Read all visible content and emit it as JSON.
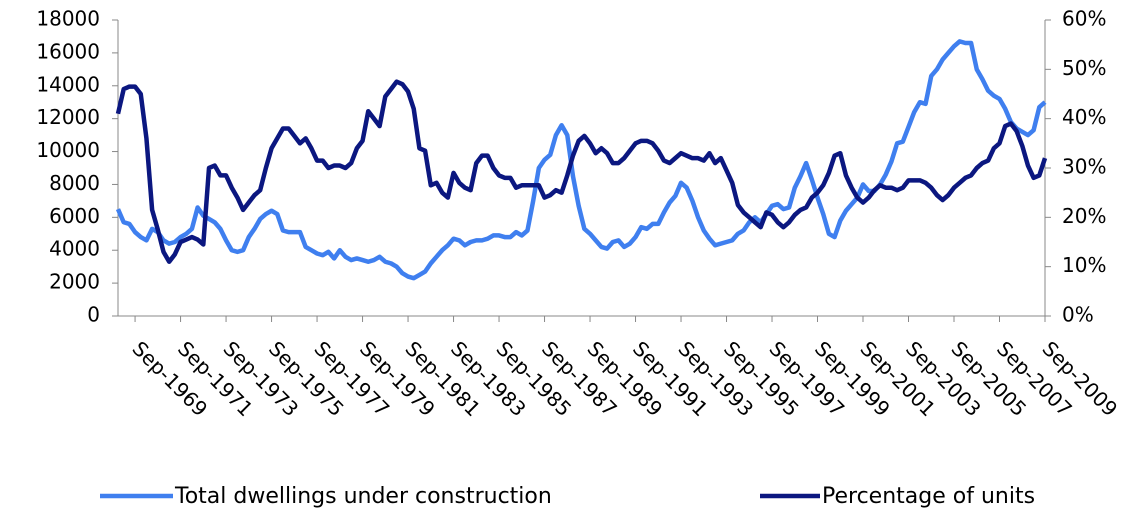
{
  "chart_data": {
    "type": "line",
    "categories": [
      null,
      null,
      null,
      "Sep-1969",
      null,
      null,
      null,
      null,
      null,
      null,
      null,
      "Sep-1971",
      null,
      null,
      null,
      null,
      null,
      null,
      null,
      "Sep-1973",
      null,
      null,
      null,
      null,
      null,
      null,
      null,
      "Sep-1975",
      null,
      null,
      null,
      null,
      null,
      null,
      null,
      "Sep-1977",
      null,
      null,
      null,
      null,
      null,
      null,
      null,
      "Sep-1979",
      null,
      null,
      null,
      null,
      null,
      null,
      null,
      "Sep-1981",
      null,
      null,
      null,
      null,
      null,
      null,
      null,
      "Sep-1983",
      null,
      null,
      null,
      null,
      null,
      null,
      null,
      "Sep-1985",
      null,
      null,
      null,
      null,
      null,
      null,
      null,
      "Sep-1987",
      null,
      null,
      null,
      null,
      null,
      null,
      null,
      "Sep-1989",
      null,
      null,
      null,
      null,
      null,
      null,
      null,
      "Sep-1991",
      null,
      null,
      null,
      null,
      null,
      null,
      null,
      "Sep-1993",
      null,
      null,
      null,
      null,
      null,
      null,
      null,
      "Sep-1995",
      null,
      null,
      null,
      null,
      null,
      null,
      null,
      "Sep-1997",
      null,
      null,
      null,
      null,
      null,
      null,
      null,
      "Sep-1999",
      null,
      null,
      null,
      null,
      null,
      null,
      null,
      "Sep-2001",
      null,
      null,
      null,
      null,
      null,
      null,
      null,
      "Sep-2003",
      null,
      null,
      null,
      null,
      null,
      null,
      null,
      "Sep-2005",
      null,
      null,
      null,
      null,
      null,
      null,
      null,
      "Sep-2007",
      null,
      null,
      null,
      null,
      null,
      null,
      null,
      "Sep-2009"
    ],
    "series": [
      {
        "name": "Total dwellings under construction",
        "color": "#3f7fef",
        "axis": "y",
        "values": [
          6500,
          5700,
          5600,
          5100,
          4800,
          4600,
          5300,
          5100,
          4600,
          4400,
          4500,
          4800,
          5000,
          5300,
          6600,
          6100,
          5900,
          5700,
          5300,
          4600,
          4000,
          3900,
          4000,
          4800,
          5300,
          5900,
          6200,
          6400,
          6200,
          5200,
          5100,
          5100,
          5100,
          4200,
          4000,
          3800,
          3700,
          3900,
          3500,
          4000,
          3600,
          3400,
          3500,
          3400,
          3300,
          3400,
          3600,
          3300,
          3200,
          3000,
          2600,
          2400,
          2300,
          2500,
          2700,
          3200,
          3600,
          4000,
          4300,
          4700,
          4600,
          4300,
          4500,
          4600,
          4600,
          4700,
          4900,
          4900,
          4800,
          4800,
          5100,
          4900,
          5200,
          7000,
          9000,
          9500,
          9800,
          11000,
          11600,
          11000,
          8500,
          6700,
          5300,
          5000,
          4600,
          4200,
          4100,
          4500,
          4600,
          4200,
          4400,
          4800,
          5400,
          5300,
          5600,
          5600,
          6300,
          6900,
          7300,
          8100,
          7800,
          7000,
          6000,
          5200,
          4700,
          4300,
          4400,
          4500,
          4600,
          5000,
          5200,
          5700,
          6000,
          5700,
          6200,
          6700,
          6800,
          6500,
          6600,
          7800,
          8500,
          9300,
          8300,
          7200,
          6200,
          5000,
          4800,
          5800,
          6400,
          6800,
          7200,
          8000,
          7600,
          7600,
          8000,
          8600,
          9400,
          10500,
          10600,
          11500,
          12400,
          13000,
          12900,
          14600,
          15000,
          15600,
          16000,
          16400,
          16700,
          16600,
          16600,
          15000,
          14400,
          13700,
          13400,
          13200,
          12600,
          11800,
          11400,
          11200,
          11000,
          11300,
          12700,
          13000
        ]
      },
      {
        "name": "Percentage of units",
        "color": "#0b1780",
        "axis": "y2",
        "values": [
          41,
          46,
          46.5,
          46.5,
          45,
          36,
          21.5,
          17.5,
          13,
          11,
          12.5,
          15,
          15.5,
          16,
          15.5,
          14.5,
          30,
          30.5,
          28.5,
          28.5,
          26,
          24,
          21.5,
          23,
          24.5,
          25.5,
          30,
          34,
          36,
          38,
          38,
          36.5,
          35,
          36,
          34,
          31.5,
          31.5,
          30,
          30.5,
          30.5,
          30,
          31,
          34,
          35.5,
          41.5,
          40,
          38.5,
          44.5,
          46,
          47.5,
          47,
          45.5,
          42,
          34,
          33.5,
          26.5,
          27,
          25,
          24,
          29,
          27,
          26,
          25.5,
          31,
          32.5,
          32.5,
          30,
          28.5,
          28,
          28,
          26,
          26.5,
          26.5,
          26.5,
          26.5,
          24,
          24.5,
          25.5,
          25,
          28.5,
          32.5,
          35.5,
          36.5,
          35,
          33,
          34,
          33,
          31,
          31,
          32,
          33.5,
          35,
          35.5,
          35.5,
          35,
          33.5,
          31.5,
          31,
          32,
          33,
          32.5,
          32,
          32,
          31.5,
          33,
          31,
          32,
          29.5,
          27,
          22.5,
          21,
          20,
          19,
          18,
          21,
          20.5,
          19,
          18,
          19,
          20.5,
          21.5,
          22,
          24,
          25,
          26.5,
          29,
          32.5,
          33,
          28.5,
          26,
          24,
          23,
          24,
          25.5,
          26.5,
          26,
          26,
          25.5,
          26,
          27.5,
          27.5,
          27.5,
          27,
          26,
          24.5,
          23.5,
          24.5,
          26,
          27,
          28,
          28.5,
          30,
          31,
          31.5,
          34,
          35,
          38.5,
          39,
          37.5,
          34.5,
          30.5,
          28,
          28.5,
          32
        ]
      }
    ],
    "ylim": [
      0,
      18000
    ],
    "yticks": [
      0,
      2000,
      4000,
      6000,
      8000,
      10000,
      12000,
      14000,
      16000,
      18000
    ],
    "y2lim": [
      0,
      60
    ],
    "y2ticks": [
      {
        "value": 0,
        "label": "0%"
      },
      {
        "value": 10,
        "label": "10%"
      },
      {
        "value": 20,
        "label": "20%"
      },
      {
        "value": 30,
        "label": "30%"
      },
      {
        "value": 40,
        "label": "40%"
      },
      {
        "value": 50,
        "label": "50%"
      },
      {
        "value": 60,
        "label": "60%"
      }
    ],
    "grid": false,
    "legend": "bottom"
  }
}
